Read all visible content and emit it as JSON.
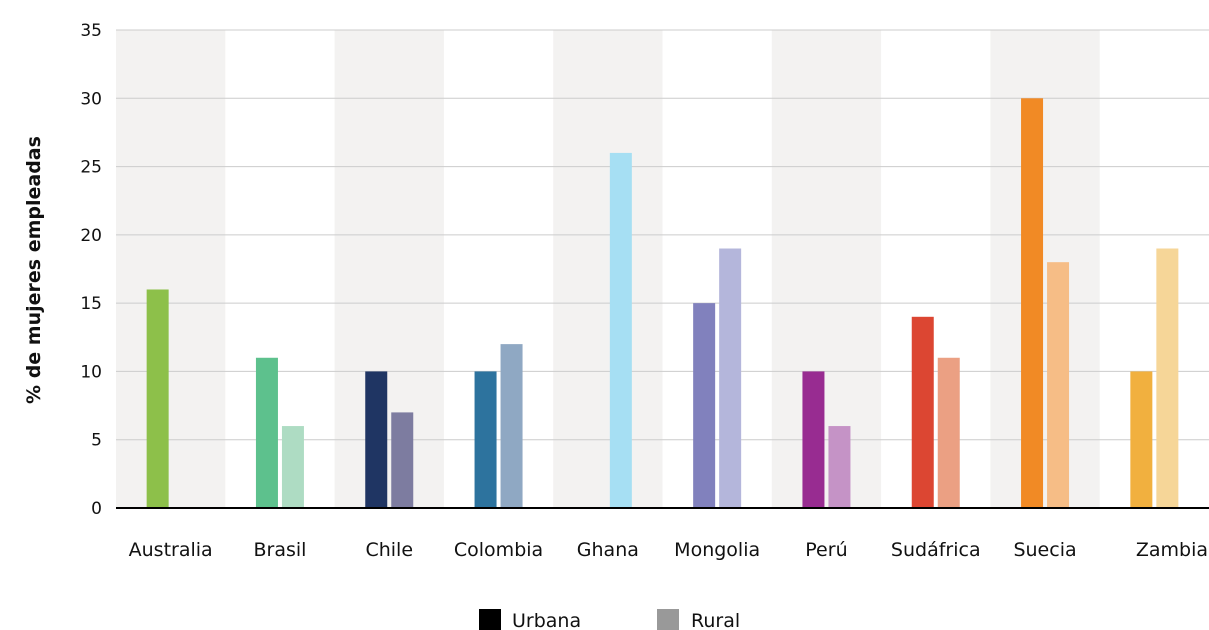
{
  "chart_data": {
    "type": "bar",
    "title": "",
    "xlabel": "",
    "ylabel": "% de mujeres empleadas",
    "ylim": [
      0,
      35
    ],
    "yticks": [
      0,
      5,
      10,
      15,
      20,
      25,
      30,
      35
    ],
    "grid": true,
    "legend_placement": "bottom-center",
    "categories": [
      "Australia",
      "Brasil",
      "Chile",
      "Colombia",
      "Ghana",
      "Mongolia",
      "Perú",
      "Sudáfrica",
      "Suecia",
      "Zambia"
    ],
    "series": [
      {
        "name": "Urbana",
        "values": [
          16,
          11,
          10,
          10,
          null,
          15,
          10,
          14,
          30,
          10
        ]
      },
      {
        "name": "Rural",
        "values": [
          null,
          6,
          7,
          12,
          26,
          19,
          6,
          11,
          18,
          19
        ]
      }
    ],
    "colors": {
      "urbana": [
        "#8dc04a",
        "#5dc18d",
        "#1f3563",
        "#2d739e",
        "#a6dff3",
        "#8181bd",
        "#982c91",
        "#dc4632",
        "#f18a25",
        "#f1b03f"
      ],
      "rural": [
        "#c6e0a2",
        "#aedcc3",
        "#7d7ca0",
        "#8fa8c3",
        "#a6dff3",
        "#b4b6db",
        "#c593c6",
        "#eba083",
        "#f6bd86",
        "#f6d698"
      ],
      "legend_urbana": "#000000",
      "legend_rural": "#999999",
      "band": "#f3f2f1",
      "grid": "#cccccc",
      "axis": "#000000"
    }
  }
}
